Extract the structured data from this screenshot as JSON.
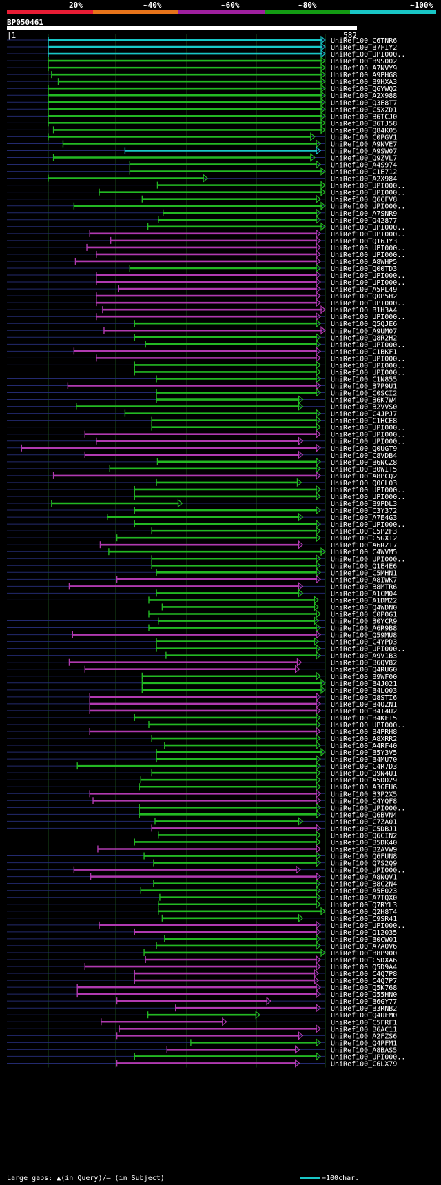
{
  "header": {
    "scale_labels": [
      "20%",
      "~40%",
      "~60%",
      "~80%",
      "~100%"
    ],
    "scale_colors": [
      "#e81c34",
      "#e6731a",
      "#9e1f9e",
      "#139b13",
      "#19c6c6"
    ],
    "query_name": "BP050461",
    "query_start": "1",
    "query_end": "582"
  },
  "colors": {
    "cyan": "#19c6c6",
    "green": "#23b823",
    "magenta": "#b03ab0",
    "gap_line": "#232a6e",
    "grid": "#1a4a1a"
  },
  "hits": [
    {
      "label": "UniRef100_C6TNR6",
      "color": "cyan",
      "start": 1,
      "end": 582
    },
    {
      "label": "UniRef100_B7FIY2",
      "color": "cyan",
      "start": 1,
      "end": 582
    },
    {
      "label": "UniRef100_UPI000..",
      "color": "cyan",
      "start": 1,
      "end": 582
    },
    {
      "label": "UniRef100_B9S002",
      "color": "green",
      "start": 1,
      "end": 582
    },
    {
      "label": "UniRef100_A7NVY9",
      "color": "green",
      "start": 1,
      "end": 582
    },
    {
      "label": "UniRef100_A9PHG8",
      "color": "green",
      "start": 8,
      "end": 582
    },
    {
      "label": "UniRef100_B9HXA3",
      "color": "green",
      "start": 22,
      "end": 582
    },
    {
      "label": "UniRef100_Q6YWQ2",
      "color": "green",
      "start": 1,
      "end": 582
    },
    {
      "label": "UniRef100_A2X988",
      "color": "green",
      "start": 1,
      "end": 582
    },
    {
      "label": "UniRef100_Q3E8T7",
      "color": "green",
      "start": 1,
      "end": 582
    },
    {
      "label": "UniRef100_C5XZD1",
      "color": "green",
      "start": 1,
      "end": 582
    },
    {
      "label": "UniRef100_B6TCJ0",
      "color": "green",
      "start": 1,
      "end": 582
    },
    {
      "label": "UniRef100_B6TJ58",
      "color": "green",
      "start": 1,
      "end": 582
    },
    {
      "label": "UniRef100_Q84K05",
      "color": "green",
      "start": 12,
      "end": 582
    },
    {
      "label": "UniRef100_C0PGV1",
      "color": "green",
      "start": 1,
      "end": 560
    },
    {
      "label": "UniRef100_A9NVE7",
      "color": "green",
      "start": 32,
      "end": 572
    },
    {
      "label": "UniRef100_A9SW07",
      "color": "cyan",
      "start": 162,
      "end": 572
    },
    {
      "label": "UniRef100_Q9ZVL7",
      "color": "green",
      "start": 12,
      "end": 560
    },
    {
      "label": "UniRef100_A4S974",
      "color": "green",
      "start": 172,
      "end": 572
    },
    {
      "label": "UniRef100_C1E712",
      "color": "green",
      "start": 172,
      "end": 582
    },
    {
      "label": "UniRef100_A2X984",
      "color": "green",
      "start": 1,
      "end": 335
    },
    {
      "label": "UniRef100_UPI000..",
      "color": "green",
      "start": 230,
      "end": 582
    },
    {
      "label": "UniRef100_UPI000..",
      "color": "green",
      "start": 108,
      "end": 582
    },
    {
      "label": "UniRef100_Q6CFV8",
      "color": "green",
      "start": 198,
      "end": 572
    },
    {
      "label": "UniRef100_UPI000..",
      "color": "green",
      "start": 55,
      "end": 582
    },
    {
      "label": "UniRef100_A7SNR9",
      "color": "green",
      "start": 242,
      "end": 572
    },
    {
      "label": "UniRef100_Q42877",
      "color": "green",
      "start": 232,
      "end": 572
    },
    {
      "label": "UniRef100_UPI000..",
      "color": "green",
      "start": 210,
      "end": 582
    },
    {
      "label": "UniRef100_UPI000..",
      "color": "magenta",
      "start": 88,
      "end": 572
    },
    {
      "label": "UniRef100_Q16JY3",
      "color": "magenta",
      "start": 132,
      "end": 572
    },
    {
      "label": "UniRef100_UPI000..",
      "color": "magenta",
      "start": 82,
      "end": 572
    },
    {
      "label": "UniRef100_UPI000..",
      "color": "magenta",
      "start": 102,
      "end": 572
    },
    {
      "label": "UniRef100_A8WHP5",
      "color": "magenta",
      "start": 58,
      "end": 572
    },
    {
      "label": "UniRef100_Q00TD3",
      "color": "green",
      "start": 172,
      "end": 572
    },
    {
      "label": "UniRef100_UPI000..",
      "color": "magenta",
      "start": 102,
      "end": 572
    },
    {
      "label": "UniRef100_UPI000..",
      "color": "magenta",
      "start": 102,
      "end": 572
    },
    {
      "label": "UniRef100_A5PL49",
      "color": "magenta",
      "start": 148,
      "end": 572
    },
    {
      "label": "UniRef100_Q0P5H2",
      "color": "magenta",
      "start": 102,
      "end": 572
    },
    {
      "label": "UniRef100_UPI000..",
      "color": "magenta",
      "start": 102,
      "end": 572
    },
    {
      "label": "UniRef100_B1H3A4",
      "color": "magenta",
      "start": 115,
      "end": 582
    },
    {
      "label": "UniRef100_UPI000..",
      "color": "magenta",
      "start": 102,
      "end": 572
    },
    {
      "label": "UniRef100_Q5QJE6",
      "color": "green",
      "start": 182,
      "end": 572
    },
    {
      "label": "UniRef100_A9UM07",
      "color": "magenta",
      "start": 118,
      "end": 582
    },
    {
      "label": "UniRef100_Q8R2H2",
      "color": "green",
      "start": 182,
      "end": 572
    },
    {
      "label": "UniRef100_UPI000..",
      "color": "green",
      "start": 205,
      "end": 572
    },
    {
      "label": "UniRef100_C1BKF1",
      "color": "magenta",
      "start": 55,
      "end": 572
    },
    {
      "label": "UniRef100_UPI000..",
      "color": "magenta",
      "start": 102,
      "end": 572
    },
    {
      "label": "UniRef100_UPI000..",
      "color": "green",
      "start": 182,
      "end": 572
    },
    {
      "label": "UniRef100_UPI000..",
      "color": "green",
      "start": 182,
      "end": 572
    },
    {
      "label": "UniRef100_C1N855",
      "color": "green",
      "start": 228,
      "end": 572
    },
    {
      "label": "UniRef100_B7P9U1",
      "color": "magenta",
      "start": 42,
      "end": 572
    },
    {
      "label": "UniRef100_C0SCI2",
      "color": "green",
      "start": 228,
      "end": 572
    },
    {
      "label": "UniRef100_B6K7W4",
      "color": "green",
      "start": 228,
      "end": 535
    },
    {
      "label": "UniRef100_B2VVS0",
      "color": "green",
      "start": 60,
      "end": 535
    },
    {
      "label": "UniRef100_C4JPJ7",
      "color": "green",
      "start": 162,
      "end": 572
    },
    {
      "label": "UniRef100_C1HCE8",
      "color": "green",
      "start": 218,
      "end": 572
    },
    {
      "label": "UniRef100_UPI000..",
      "color": "green",
      "start": 218,
      "end": 572
    },
    {
      "label": "UniRef100_UPI000..",
      "color": "magenta",
      "start": 78,
      "end": 572
    },
    {
      "label": "UniRef100_UPI000..",
      "color": "magenta",
      "start": 102,
      "end": 535
    },
    {
      "label": "UniRef100_Q0UGT9",
      "color": "magenta",
      "start": -55,
      "end": 572
    },
    {
      "label": "UniRef100_C8VDB4",
      "color": "magenta",
      "start": 78,
      "end": 535
    },
    {
      "label": "UniRef100_B6NCZ8",
      "color": "green",
      "start": 230,
      "end": 572
    },
    {
      "label": "UniRef100_B0WIT5",
      "color": "green",
      "start": 130,
      "end": 572
    },
    {
      "label": "UniRef100_A8PCQ2",
      "color": "magenta",
      "start": 12,
      "end": 572
    },
    {
      "label": "UniRef100_Q0CL03",
      "color": "green",
      "start": 228,
      "end": 532
    },
    {
      "label": "UniRef100_UPI000..",
      "color": "green",
      "start": 182,
      "end": 572
    },
    {
      "label": "UniRef100_UPI000..",
      "color": "green",
      "start": 182,
      "end": 572
    },
    {
      "label": "UniRef100_B9PDL3",
      "color": "green",
      "start": 8,
      "end": 282
    },
    {
      "label": "UniRef100_C3Y372",
      "color": "green",
      "start": 182,
      "end": 572
    },
    {
      "label": "UniRef100_A7E4G3",
      "color": "green",
      "start": 125,
      "end": 535
    },
    {
      "label": "UniRef100_UPI000..",
      "color": "green",
      "start": 182,
      "end": 572
    },
    {
      "label": "UniRef100_C5P2F3",
      "color": "green",
      "start": 218,
      "end": 572
    },
    {
      "label": "UniRef100_C5GXT2",
      "color": "green",
      "start": 145,
      "end": 572
    },
    {
      "label": "UniRef100_A6RZT7",
      "color": "magenta",
      "start": 110,
      "end": 535
    },
    {
      "label": "UniRef100_C4WVM5",
      "color": "green",
      "start": 128,
      "end": 582
    },
    {
      "label": "UniRef100_UPI000..",
      "color": "green",
      "start": 218,
      "end": 572
    },
    {
      "label": "UniRef100_Q1E4E6",
      "color": "green",
      "start": 218,
      "end": 572
    },
    {
      "label": "UniRef100_C5MHN1",
      "color": "green",
      "start": 228,
      "end": 572
    },
    {
      "label": "UniRef100_A8IWK7",
      "color": "magenta",
      "start": 145,
      "end": 572
    },
    {
      "label": "UniRef100_B8MTR6",
      "color": "magenta",
      "start": 45,
      "end": 535
    },
    {
      "label": "UniRef100_A1CM04",
      "color": "green",
      "start": 228,
      "end": 535
    },
    {
      "label": "UniRef100_A1DM22",
      "color": "green",
      "start": 212,
      "end": 568
    },
    {
      "label": "UniRef100_Q4WDN0",
      "color": "green",
      "start": 240,
      "end": 568
    },
    {
      "label": "UniRef100_C0P0G1",
      "color": "green",
      "start": 212,
      "end": 572
    },
    {
      "label": "UniRef100_B0YCR9",
      "color": "green",
      "start": 232,
      "end": 568
    },
    {
      "label": "UniRef100_A6R9B8",
      "color": "green",
      "start": 212,
      "end": 572
    },
    {
      "label": "UniRef100_Q59MU8",
      "color": "magenta",
      "start": 52,
      "end": 572
    },
    {
      "label": "UniRef100_C4YPD3",
      "color": "green",
      "start": 228,
      "end": 568
    },
    {
      "label": "UniRef100_UPI000..",
      "color": "green",
      "start": 228,
      "end": 572
    },
    {
      "label": "UniRef100_A9V1B3",
      "color": "green",
      "start": 248,
      "end": 572
    },
    {
      "label": "UniRef100_B6QV82",
      "color": "magenta",
      "start": 45,
      "end": 532
    },
    {
      "label": "UniRef100_Q4RUG0",
      "color": "magenta",
      "start": 78,
      "end": 528
    },
    {
      "label": "UniRef100_B9WF00",
      "color": "green",
      "start": 198,
      "end": 572
    },
    {
      "label": "UniRef100_B4J021",
      "color": "green",
      "start": 198,
      "end": 582
    },
    {
      "label": "UniRef100_B4LQ03",
      "color": "green",
      "start": 198,
      "end": 582
    },
    {
      "label": "UniRef100_Q8STI6",
      "color": "magenta",
      "start": 88,
      "end": 572
    },
    {
      "label": "UniRef100_B4QZN1",
      "color": "magenta",
      "start": 88,
      "end": 572
    },
    {
      "label": "UniRef100_B4I4U2",
      "color": "magenta",
      "start": 88,
      "end": 572
    },
    {
      "label": "UniRef100_B4KFT5",
      "color": "green",
      "start": 182,
      "end": 572
    },
    {
      "label": "UniRef100_UPI000..",
      "color": "green",
      "start": 212,
      "end": 572
    },
    {
      "label": "UniRef100_B4PRH8",
      "color": "magenta",
      "start": 88,
      "end": 572
    },
    {
      "label": "UniRef100_A8XRR2",
      "color": "green",
      "start": 218,
      "end": 572
    },
    {
      "label": "UniRef100_A4RF40",
      "color": "green",
      "start": 245,
      "end": 572
    },
    {
      "label": "UniRef100_B5Y3V5",
      "color": "green",
      "start": 228,
      "end": 582
    },
    {
      "label": "UniRef100_B4MU70",
      "color": "green",
      "start": 228,
      "end": 572
    },
    {
      "label": "UniRef100_C4R7D3",
      "color": "green",
      "start": 62,
      "end": 572
    },
    {
      "label": "UniRef100_Q9N4U1",
      "color": "green",
      "start": 218,
      "end": 572
    },
    {
      "label": "UniRef100_A5DD29",
      "color": "green",
      "start": 195,
      "end": 572
    },
    {
      "label": "UniRef100_A3GEU6",
      "color": "green",
      "start": 192,
      "end": 572
    },
    {
      "label": "UniRef100_B3P2X5",
      "color": "magenta",
      "start": 88,
      "end": 572
    },
    {
      "label": "UniRef100_C4YQF8",
      "color": "magenta",
      "start": 95,
      "end": 572
    },
    {
      "label": "UniRef100_UPI000..",
      "color": "green",
      "start": 192,
      "end": 572
    },
    {
      "label": "UniRef100_Q6BVN4",
      "color": "green",
      "start": 192,
      "end": 572
    },
    {
      "label": "UniRef100_C7ZA01",
      "color": "green",
      "start": 225,
      "end": 535
    },
    {
      "label": "UniRef100_C5DBJ1",
      "color": "magenta",
      "start": 218,
      "end": 572
    },
    {
      "label": "UniRef100_Q6CIN2",
      "color": "green",
      "start": 232,
      "end": 572
    },
    {
      "label": "UniRef100_B5DK40",
      "color": "green",
      "start": 182,
      "end": 572
    },
    {
      "label": "UniRef100_B2AVW9",
      "color": "magenta",
      "start": 105,
      "end": 572
    },
    {
      "label": "UniRef100_Q6FUN8",
      "color": "green",
      "start": 202,
      "end": 572
    },
    {
      "label": "UniRef100_Q7S2Q9",
      "color": "green",
      "start": 222,
      "end": 572
    },
    {
      "label": "UniRef100_UPI000..",
      "color": "magenta",
      "start": 55,
      "end": 530
    },
    {
      "label": "UniRef100_A8NQV1",
      "color": "magenta",
      "start": 90,
      "end": 572
    },
    {
      "label": "UniRef100_B8C2N4",
      "color": "green",
      "start": 222,
      "end": 572
    },
    {
      "label": "UniRef100_A5E023",
      "color": "green",
      "start": 195,
      "end": 572
    },
    {
      "label": "UniRef100_A7TQX0",
      "color": "green",
      "start": 235,
      "end": 572
    },
    {
      "label": "UniRef100_Q7RYL3",
      "color": "green",
      "start": 232,
      "end": 572
    },
    {
      "label": "UniRef100_Q2H8T4",
      "color": "green",
      "start": 232,
      "end": 582
    },
    {
      "label": "UniRef100_C9SR41",
      "color": "green",
      "start": 240,
      "end": 535
    },
    {
      "label": "UniRef100_UPI000..",
      "color": "magenta",
      "start": 108,
      "end": 572
    },
    {
      "label": "UniRef100_Q12035",
      "color": "magenta",
      "start": 182,
      "end": 572
    },
    {
      "label": "UniRef100_B0CW01",
      "color": "green",
      "start": 245,
      "end": 572
    },
    {
      "label": "UniRef100_A7A0V6",
      "color": "green",
      "start": 228,
      "end": 572
    },
    {
      "label": "UniRef100_B8P900",
      "color": "green",
      "start": 202,
      "end": 582
    },
    {
      "label": "UniRef100_C5DXA6",
      "color": "magenta",
      "start": 205,
      "end": 572
    },
    {
      "label": "UniRef100_Q5D9A4",
      "color": "magenta",
      "start": 78,
      "end": 572
    },
    {
      "label": "UniRef100_C4Q7P8",
      "color": "magenta",
      "start": 182,
      "end": 568
    },
    {
      "label": "UniRef100_C4Q7P7",
      "color": "magenta",
      "start": 182,
      "end": 568
    },
    {
      "label": "UniRef100_Q5K768",
      "color": "magenta",
      "start": 62,
      "end": 572
    },
    {
      "label": "UniRef100_Q55HN0",
      "color": "magenta",
      "start": 62,
      "end": 572
    },
    {
      "label": "UniRef100_B6GY77",
      "color": "magenta",
      "start": 145,
      "end": 468
    },
    {
      "label": "UniRef100_B3RNB2",
      "color": "magenta",
      "start": 268,
      "end": 572
    },
    {
      "label": "UniRef100_Q4UFM0",
      "color": "green",
      "start": 210,
      "end": 445
    },
    {
      "label": "UniRef100_C5FRF1",
      "color": "magenta",
      "start": 112,
      "end": 375
    },
    {
      "label": "UniRef100_B6AC11",
      "color": "magenta",
      "start": 150,
      "end": 572
    },
    {
      "label": "UniRef100_A2FZS6",
      "color": "magenta",
      "start": 145,
      "end": 535
    },
    {
      "label": "UniRef100_Q4PFM1",
      "color": "green",
      "start": 300,
      "end": 572
    },
    {
      "label": "UniRef100_A8BAS5",
      "color": "magenta",
      "start": 250,
      "end": 528
    },
    {
      "label": "UniRef100_UPI000..",
      "color": "green",
      "start": 182,
      "end": 572
    },
    {
      "label": "UniRef100_C6LX79",
      "color": "magenta",
      "start": 145,
      "end": 528
    }
  ],
  "footer": {
    "left_text": "Large gaps: ▲(in Query)/– (in Subject)",
    "right_text": "=100char."
  }
}
